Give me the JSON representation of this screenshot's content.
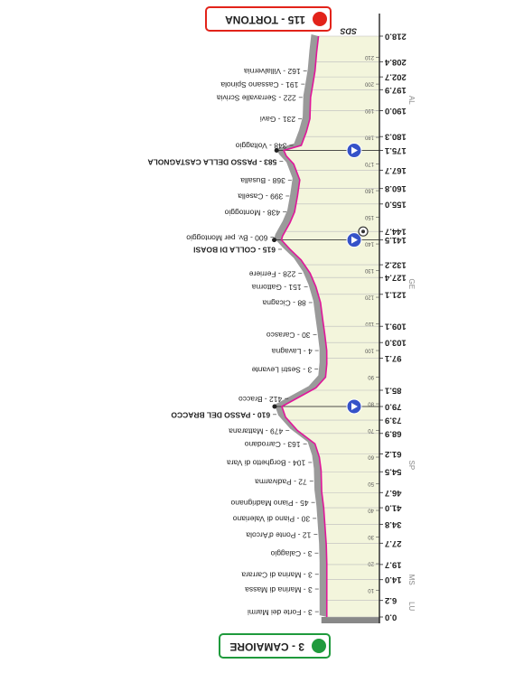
{
  "start": {
    "label": "3 - CAMAIORE"
  },
  "finish": {
    "label": "115 - TORTONA"
  },
  "logo": "SDS",
  "km_axis": {
    "lim": [
      0,
      218
    ],
    "ticks": [
      {
        "value": 0,
        "label": "0.0"
      },
      6.2,
      {
        "value": 14,
        "label": "14.0"
      },
      19.7,
      27.7,
      34.8,
      {
        "value": 41,
        "label": "41.0"
      },
      46.7,
      54.5,
      61.2,
      68.9,
      73.9,
      {
        "value": 79,
        "label": "79.0",
        "marker": "climb"
      },
      85.1,
      97.1,
      {
        "value": 103,
        "label": "103.0"
      },
      109.1,
      121.1,
      127.4,
      132.2,
      {
        "value": 141.5,
        "label": "141.5",
        "marker": "climb"
      },
      {
        "value": 144.7,
        "label": "144.7",
        "marker": "sprint"
      },
      {
        "value": 155,
        "label": "155.0"
      },
      160.8,
      167.7,
      {
        "value": 175.1,
        "label": "175.1",
        "marker": "climb"
      },
      180.3,
      {
        "value": 190,
        "label": "190.0"
      },
      197.9,
      202.7,
      208.4,
      {
        "value": 218,
        "label": "218.0"
      }
    ],
    "minor_ticks": [
      10,
      20,
      30,
      40,
      50,
      60,
      70,
      80,
      90,
      100,
      110,
      120,
      130,
      140,
      150,
      160,
      170,
      180,
      190,
      200,
      210
    ]
  },
  "regions": [
    {
      "label": "LU",
      "km": 4
    },
    {
      "label": "MS",
      "km": 14
    },
    {
      "label": "SP",
      "km": 57
    },
    {
      "label": "GE",
      "km": 125
    },
    {
      "label": "AL",
      "km": 194
    }
  ],
  "places": [
    {
      "km": 2,
      "label": "3 - Forte dei Marmi"
    },
    {
      "km": 10.5,
      "label": "3 - Marina di Massa"
    },
    {
      "km": 16,
      "label": "3 - Marina di Carrara"
    },
    {
      "km": 24,
      "label": "3 - Calaggio"
    },
    {
      "km": 31,
      "label": "12 - Ponte d'Arcola"
    },
    {
      "km": 37,
      "label": "30 - Piano di Valeriano"
    },
    {
      "km": 43,
      "label": "45 - Piano Madrignano"
    },
    {
      "km": 51,
      "label": "72 - Padivarma"
    },
    {
      "km": 58,
      "label": "104 - Borghetto di Vara"
    },
    {
      "km": 65,
      "label": "163 - Carrodano"
    },
    {
      "km": 70,
      "label": "479 - Mattarana"
    },
    {
      "km": 76,
      "label": "610 - PASSO DEL BRACCO",
      "bold": true
    },
    {
      "km": 82,
      "label": "412 - Bracco"
    },
    {
      "km": 93,
      "label": "3 - Sestri Levante"
    },
    {
      "km": 100,
      "label": "4 - Lavagna"
    },
    {
      "km": 106,
      "label": "30 - Carasco"
    },
    {
      "km": 118,
      "label": "88 - Cicagna"
    },
    {
      "km": 124,
      "label": "151 - Gattorna"
    },
    {
      "km": 129,
      "label": "228 - Ferriere"
    },
    {
      "km": 138,
      "label": "615 - COLLA DI BOASI",
      "bold": true
    },
    {
      "km": 142.5,
      "label": "600 - Bv. per Montoggio"
    },
    {
      "km": 152,
      "label": "438 - Montoggio"
    },
    {
      "km": 158,
      "label": "399 - Casella"
    },
    {
      "km": 164,
      "label": "368 - Busalla"
    },
    {
      "km": 171,
      "label": "583 - PASSO DELLA CASTAGNOLA",
      "bold": true
    },
    {
      "km": 177,
      "label": "348 - Voltaggio"
    },
    {
      "km": 187,
      "label": "231 - Gavi"
    },
    {
      "km": 195,
      "label": "222 - Serravalle Scrivia"
    },
    {
      "km": 200,
      "label": "191 - Cassano Spinola"
    },
    {
      "km": 205,
      "label": "162 - Villalvernia"
    }
  ],
  "profile": {
    "km": [
      0,
      10,
      20,
      27,
      35,
      41,
      47,
      55,
      60,
      65,
      70,
      75,
      79,
      82,
      86,
      90,
      95,
      100,
      106,
      112,
      118,
      124,
      129,
      134,
      138,
      141.5,
      143,
      148,
      152,
      158,
      164,
      170,
      173,
      175.1,
      177,
      182,
      187,
      195,
      200,
      205,
      212,
      218
    ],
    "elev": [
      3,
      3,
      3,
      10,
      30,
      45,
      72,
      80,
      104,
      163,
      400,
      560,
      610,
      412,
      150,
      20,
      3,
      4,
      30,
      60,
      88,
      151,
      228,
      350,
      500,
      615,
      600,
      500,
      438,
      399,
      368,
      450,
      550,
      583,
      348,
      280,
      231,
      222,
      191,
      162,
      140,
      115
    ]
  }
}
